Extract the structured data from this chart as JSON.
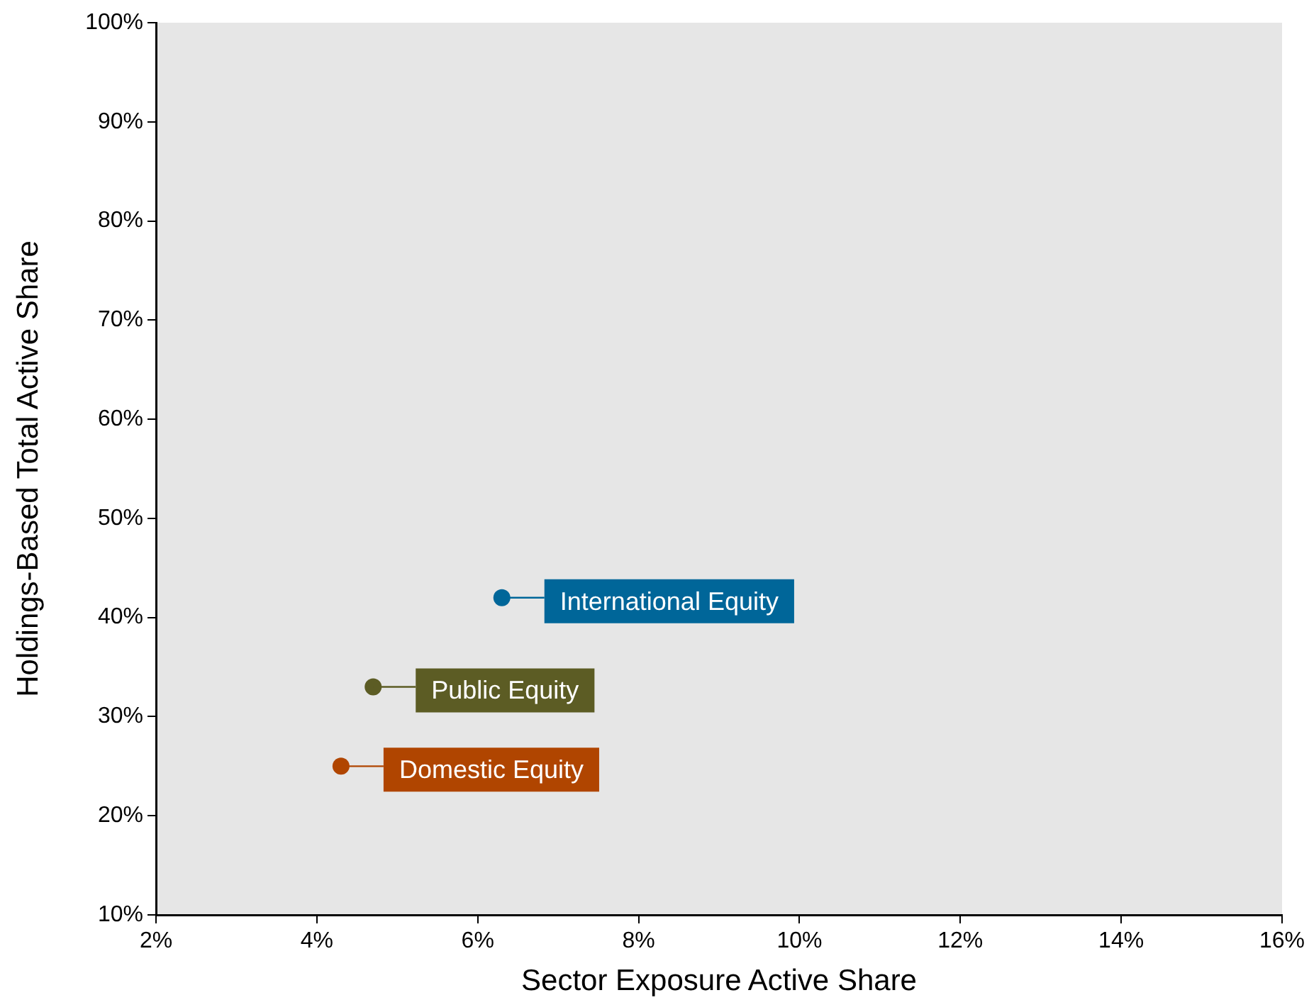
{
  "chart_data": {
    "type": "scatter",
    "xlabel": "Sector Exposure Active Share",
    "ylabel": "Holdings-Based Total Active Share",
    "xlim": [
      2,
      16
    ],
    "xticks": [
      {
        "value": 2,
        "label": "2%"
      },
      {
        "value": 4,
        "label": "4%"
      },
      {
        "value": 6,
        "label": "6%"
      },
      {
        "value": 8,
        "label": "8%"
      },
      {
        "value": 10,
        "label": "10%"
      },
      {
        "value": 12,
        "label": "12%"
      },
      {
        "value": 14,
        "label": "14%"
      },
      {
        "value": 16,
        "label": "16%"
      }
    ],
    "ylim": [
      10,
      100
    ],
    "yticks": [
      {
        "value": 10,
        "label": "10%"
      },
      {
        "value": 20,
        "label": "20%"
      },
      {
        "value": 30,
        "label": "30%"
      },
      {
        "value": 40,
        "label": "40%"
      },
      {
        "value": 50,
        "label": "50%"
      },
      {
        "value": 60,
        "label": "60%"
      },
      {
        "value": 70,
        "label": "70%"
      },
      {
        "value": 80,
        "label": "80%"
      },
      {
        "value": 90,
        "label": "90%"
      },
      {
        "value": 100,
        "label": "100%"
      }
    ],
    "series": [
      {
        "name": "International Equity",
        "color": "#006699",
        "x": [
          6.3
        ],
        "values": [
          42
        ]
      },
      {
        "name": "Public Equity",
        "color": "#5c5c24",
        "x": [
          4.7
        ],
        "values": [
          33
        ]
      },
      {
        "name": "Domestic Equity",
        "color": "#b04500",
        "x": [
          4.3
        ],
        "values": [
          25
        ]
      }
    ],
    "grid": false,
    "legend": "bottom left",
    "marker": "circle"
  }
}
